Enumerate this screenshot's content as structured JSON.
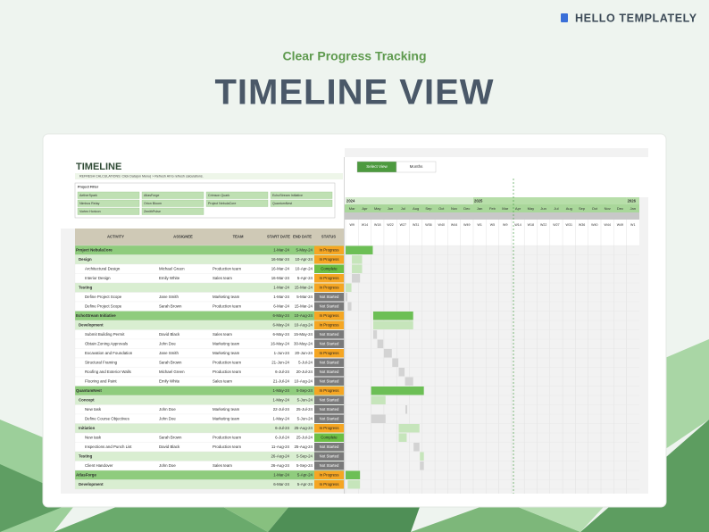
{
  "brand": "HELLO TEMPLATELY",
  "subtitle": "Clear Progress Tracking",
  "title": "TIMELINE VIEW",
  "sheet": {
    "title": "TIMELINE",
    "note": "REFRESH CALCULATIONS: Click Data(on Menu) > Refresh All to refresh calculations.",
    "filter_label": "Project Filter",
    "filters": [
      "AetherSpark",
      "AtlasForge",
      "Crimson Quark",
      "EchoStream Initiative",
      "Nimbus Relay",
      "Orion Bloom",
      "Project NebulaCore",
      "QuantumNest",
      "Vortex Horizon",
      "ZenithPulse"
    ],
    "view_buttons": [
      "Select View",
      "Months"
    ],
    "columns": [
      "ACTIVITY",
      "ASSIGNEE",
      "TEAM",
      "START DATE",
      "END DATE",
      "STATUS"
    ],
    "years": [
      "2024",
      "2025",
      "2026"
    ],
    "months": [
      "Mar",
      "Apr",
      "May",
      "Jun",
      "Jul",
      "Aug",
      "Sep",
      "Oct",
      "Nov",
      "Dec",
      "Jan",
      "Feb",
      "Mar",
      "Apr",
      "May",
      "Jun",
      "Jul",
      "Aug",
      "Sep",
      "Oct",
      "Nov",
      "Dec",
      "Jan"
    ],
    "weeks": [
      "W9",
      "W14",
      "W18",
      "W22",
      "W27",
      "W31",
      "W36",
      "W40",
      "W44",
      "W49",
      "W1",
      "W5",
      "W9",
      "W14",
      "W18",
      "W22",
      "W27",
      "W31",
      "W36",
      "W40",
      "W44",
      "W49",
      "W1"
    ],
    "rows": [
      {
        "level": "project",
        "cells": [
          "Project NebulaCore",
          null,
          null,
          "1-Mar-24",
          "5-May-24",
          "In Progress"
        ]
      },
      {
        "level": "phase",
        "cells": [
          "Design",
          null,
          null,
          "16-Mar-24",
          "10-Apr-24",
          "In Progress"
        ]
      },
      {
        "level": "task",
        "cells": [
          "Architectural Design",
          "Michael Green",
          "Production team",
          "16-Mar-24",
          "10-Apr-24",
          "Complete"
        ]
      },
      {
        "level": "task",
        "cells": [
          "Interior Design",
          "Emily White",
          "Sales team",
          "16-Mar-24",
          "5-Apr-24",
          "In Progress"
        ]
      },
      {
        "level": "phase",
        "cells": [
          "Testing",
          null,
          null,
          "1-Mar-24",
          "15-Mar-24",
          "In Progress"
        ]
      },
      {
        "level": "task",
        "cells": [
          "Define Project Scope",
          "Jane Smith",
          "Marketing team",
          "1-Mar-24",
          "5-Mar-24",
          "Not Started"
        ]
      },
      {
        "level": "task",
        "cells": [
          "Define Project Scope",
          "Sarah Brown",
          "Production team",
          "6-Mar-24",
          "15-Mar-24",
          "Not Started"
        ]
      },
      {
        "level": "project",
        "cells": [
          "EchoStream Initiative",
          null,
          null,
          "6-May-24",
          "10-Aug-24",
          "In Progress"
        ]
      },
      {
        "level": "phase",
        "cells": [
          "Development",
          null,
          null,
          "6-May-24",
          "10-Aug-24",
          "In Progress"
        ]
      },
      {
        "level": "task",
        "cells": [
          "Submit Building Permit",
          "David Black",
          "Sales team",
          "6-May-24",
          "15-May-24",
          "Not Started"
        ]
      },
      {
        "level": "task",
        "cells": [
          "Obtain Zoning Approvals",
          "John Doe",
          "Marketing team",
          "16-May-24",
          "30-May-24",
          "Not Started"
        ]
      },
      {
        "level": "task",
        "cells": [
          "Excavation and Foundation",
          "Jane Smith",
          "Marketing team",
          "1-Jun-24",
          "20-Jun-24",
          "In Progress"
        ]
      },
      {
        "level": "task",
        "cells": [
          "Structural Framing",
          "Sarah Brown",
          "Production team",
          "21-Jun-24",
          "5-Jul-24",
          "Not Started"
        ]
      },
      {
        "level": "task",
        "cells": [
          "Roofing and Exterior Walls",
          "Michael Green",
          "Production team",
          "6-Jul-24",
          "20-Jul-24",
          "Not Started"
        ]
      },
      {
        "level": "task",
        "cells": [
          "Flooring and Paint",
          "Emily White",
          "Sales team",
          "21-Jul-24",
          "10-Aug-24",
          "Not Started"
        ]
      },
      {
        "level": "project",
        "cells": [
          "QuantumNest",
          null,
          null,
          "1-May-24",
          "5-Sep-24",
          "In Progress"
        ]
      },
      {
        "level": "phase",
        "cells": [
          "Concept",
          null,
          null,
          "1-May-24",
          "5-Jun-24",
          "Not Started"
        ]
      },
      {
        "level": "task",
        "cells": [
          "New task",
          "John Doe",
          "Marketing team",
          "22-Jul-24",
          "25-Jul-24",
          "Not Started"
        ]
      },
      {
        "level": "task",
        "cells": [
          "Define Course Objectives",
          "John Doe",
          "Marketing team",
          "1-May-24",
          "5-Jun-24",
          "Not Started"
        ]
      },
      {
        "level": "phase",
        "cells": [
          "Initiation",
          null,
          null,
          "6-Jul-24",
          "25-Aug-24",
          "In Progress"
        ]
      },
      {
        "level": "task",
        "cells": [
          "New task",
          "Sarah Brown",
          "Production team",
          "6-Jul-24",
          "25-Jul-24",
          "Complete"
        ]
      },
      {
        "level": "task",
        "cells": [
          "Inspections and Punch List",
          "David Black",
          "Production team",
          "11-Aug-24",
          "25-Aug-24",
          "Not Started"
        ]
      },
      {
        "level": "phase",
        "cells": [
          "Testing",
          null,
          null,
          "26-Aug-24",
          "5-Sep-24",
          "Not Started"
        ]
      },
      {
        "level": "task",
        "cells": [
          "Client Handover",
          "John Doe",
          "Sales team",
          "26-Aug-24",
          "5-Sep-24",
          "Not Started"
        ]
      },
      {
        "level": "project",
        "cells": [
          "AtlasForge",
          null,
          null,
          "1-Mar-24",
          "5-Apr-24",
          "In Progress"
        ]
      },
      {
        "level": "phase",
        "cells": [
          "Development",
          null,
          null,
          "6-Mar-24",
          "5-Apr-24",
          "In Progress"
        ]
      }
    ]
  }
}
